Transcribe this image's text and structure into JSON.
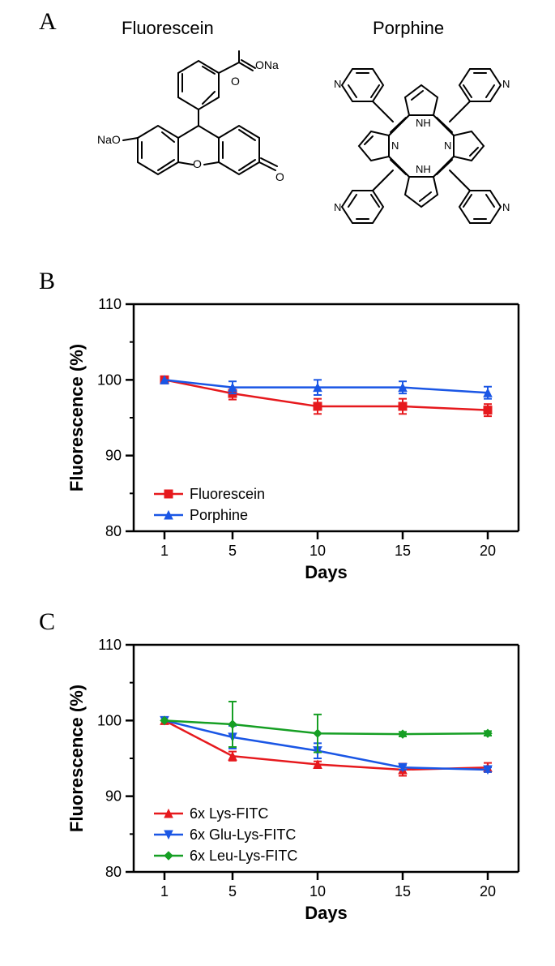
{
  "panelA": {
    "label": "A",
    "fluorescein_title": "Fluorescein",
    "porphine_title": "Porphine"
  },
  "panelB": {
    "label": "B",
    "ylabel": "Fluorescence (%)",
    "xlabel": "Days",
    "ylim": [
      80,
      110
    ],
    "yticks": [
      80,
      90,
      100,
      110
    ],
    "xvals": [
      1,
      5,
      10,
      15,
      20
    ],
    "series": [
      {
        "name": "Fluorescein",
        "color": "#e6191d",
        "marker": "square",
        "y": [
          100,
          98.2,
          96.5,
          96.5,
          96.0
        ],
        "err": [
          0,
          0.8,
          1.0,
          1.0,
          0.8
        ]
      },
      {
        "name": "Porphine",
        "color": "#1a56e5",
        "marker": "triangle-up",
        "y": [
          100,
          99.0,
          99.0,
          99.0,
          98.3
        ],
        "err": [
          0,
          0.8,
          1.0,
          0.8,
          0.8
        ]
      }
    ],
    "legend_pos": "inside-bottom-left",
    "background": "#ffffff",
    "axis_color": "#000000",
    "line_width": 2.5,
    "marker_size": 8,
    "tick_fontsize": 18,
    "label_fontsize": 22
  },
  "panelC": {
    "label": "C",
    "ylabel": "Fluorescence (%)",
    "xlabel": "Days",
    "ylim": [
      80,
      110
    ],
    "yticks": [
      80,
      90,
      100,
      110
    ],
    "xvals": [
      1,
      5,
      10,
      15,
      20
    ],
    "series": [
      {
        "name": "6x Lys-FITC",
        "color": "#e6191d",
        "marker": "triangle-up",
        "y": [
          100,
          95.3,
          94.2,
          93.5,
          93.8
        ],
        "err": [
          0,
          0.6,
          0.4,
          0.8,
          0.6
        ]
      },
      {
        "name": "6x Glu-Lys-FITC",
        "color": "#1a56e5",
        "marker": "triangle-down",
        "y": [
          100,
          97.8,
          96.0,
          93.8,
          93.5
        ],
        "err": [
          0,
          1.5,
          1.0,
          0.3,
          0.3
        ]
      },
      {
        "name": "6x Leu-Lys-FITC",
        "color": "#169f24",
        "marker": "diamond",
        "y": [
          100,
          99.5,
          98.3,
          98.2,
          98.3
        ],
        "err": [
          0,
          3.0,
          2.5,
          0.3,
          0.3
        ]
      }
    ],
    "legend_pos": "inside-bottom-left",
    "background": "#ffffff",
    "axis_color": "#000000",
    "line_width": 2.5,
    "marker_size": 8,
    "tick_fontsize": 18,
    "label_fontsize": 22
  },
  "structures": {
    "fluorescein_labels": [
      "NaO",
      "O",
      "O",
      "O",
      "ONa",
      "O"
    ],
    "porphine_labels": [
      "N",
      "N",
      "N",
      "N",
      "N",
      "N",
      "N",
      "N",
      "H",
      "H"
    ]
  }
}
